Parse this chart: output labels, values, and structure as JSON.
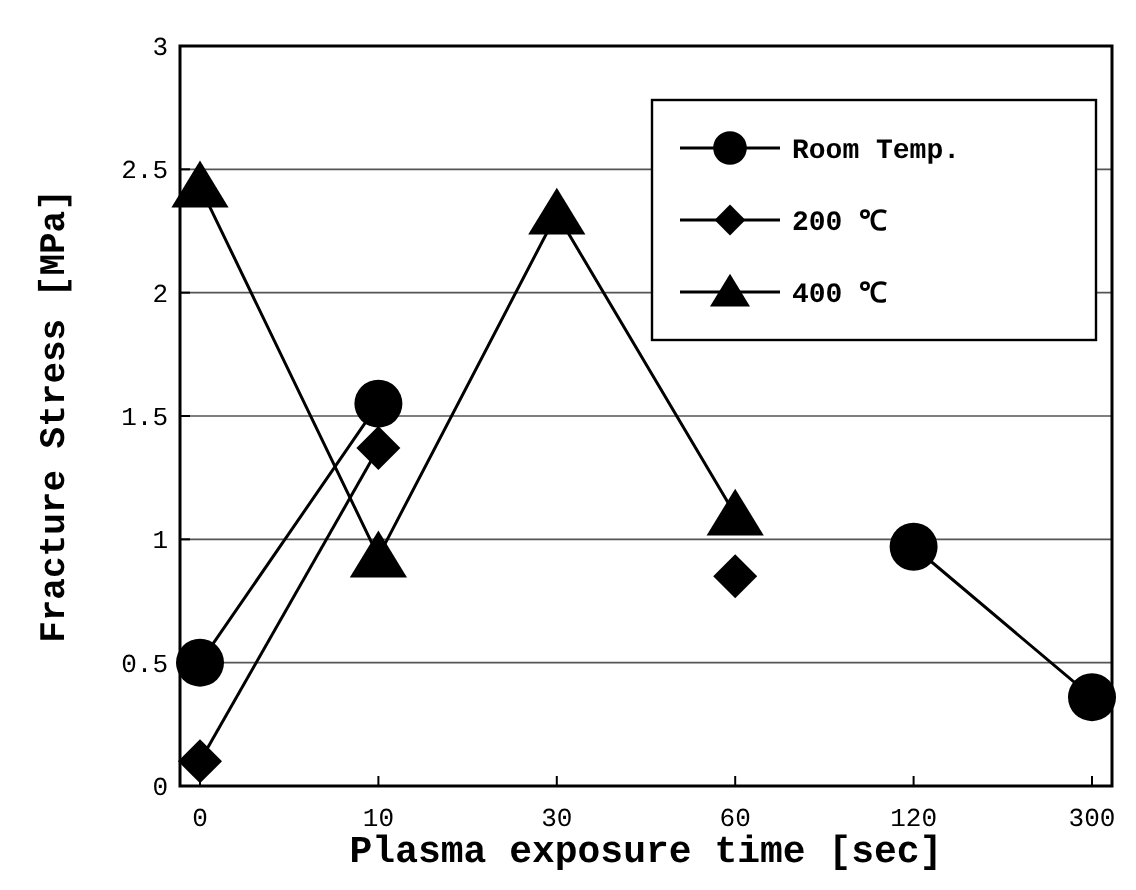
{
  "chart_data": {
    "type": "line",
    "xlabel": "Plasma exposure time [sec]",
    "ylabel": "Fracture Stress [MPa]",
    "categories": [
      "0",
      "10",
      "30",
      "60",
      "120",
      "300"
    ],
    "ylim": [
      0,
      3
    ],
    "yticks": [
      0,
      0.5,
      1,
      1.5,
      2,
      2.5,
      3
    ],
    "grid": "y",
    "legend": "top right",
    "line_style": "solid",
    "series": [
      {
        "name": "Room Temp.",
        "color": "#000000",
        "marker": "circle",
        "values": [
          0.5,
          1.55,
          null,
          null,
          0.97,
          0.36
        ]
      },
      {
        "name": "200 ℃",
        "color": "#000000",
        "marker": "diamond",
        "values": [
          0.1,
          1.37,
          null,
          0.85,
          null,
          null
        ]
      },
      {
        "name": "400 ℃",
        "color": "#000000",
        "marker": "triangle",
        "values": [
          2.43,
          0.93,
          2.32,
          1.1,
          null,
          null
        ]
      }
    ]
  }
}
